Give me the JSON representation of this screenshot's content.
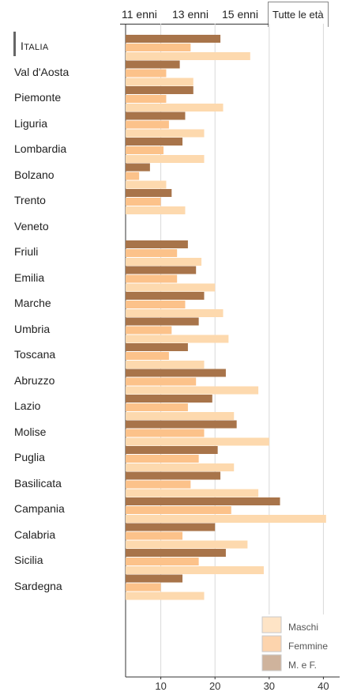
{
  "tabs": [
    {
      "label": "11 enni",
      "active": false
    },
    {
      "label": "13 enni",
      "active": false
    },
    {
      "label": "15 enni",
      "active": false
    },
    {
      "label": "Tutte le età",
      "active": true
    }
  ],
  "selected_region": "Italia",
  "colors": {
    "maschi": "#fdd9ae",
    "femmine": "#fcc28a",
    "mf": "#a8744a",
    "grid": "#d9d9d9",
    "axis": "#333333"
  },
  "chart_data": {
    "type": "bar",
    "orientation": "horizontal",
    "categories": [
      "Italia",
      "Val d'Aosta",
      "Piemonte",
      "Liguria",
      "Lombardia",
      "Bolzano",
      "Trento",
      "Veneto",
      "Friuli",
      "Emilia",
      "Marche",
      "Umbria",
      "Toscana",
      "Abruzzo",
      "Lazio",
      "Molise",
      "Puglia",
      "Basilicata",
      "Campania",
      "Calabria",
      "Sicilia",
      "Sardegna"
    ],
    "series": [
      {
        "name": "M. e F.",
        "key": "mf",
        "values": [
          21,
          13.5,
          16,
          14.5,
          14,
          8,
          12,
          null,
          15,
          16.5,
          18,
          17,
          15,
          22,
          19.5,
          24,
          20.5,
          21,
          32,
          20,
          22,
          14
        ]
      },
      {
        "name": "Femmine",
        "key": "femmine",
        "values": [
          15.5,
          11,
          11,
          11.5,
          10.5,
          6,
          10,
          null,
          13,
          13,
          14.5,
          12,
          11.5,
          16.5,
          15,
          18,
          17,
          15.5,
          23,
          14,
          17,
          10
        ]
      },
      {
        "name": "Maschi",
        "key": "maschi",
        "values": [
          26.5,
          16,
          21.5,
          18,
          18,
          11,
          14.5,
          null,
          17.5,
          20,
          21.5,
          22.5,
          18,
          28,
          23.5,
          30,
          23.5,
          28,
          40.5,
          26,
          29,
          18
        ]
      }
    ],
    "xlim": [
      3.5,
      43
    ],
    "ticks": [
      10,
      20,
      30,
      40
    ],
    "tick_labels": [
      "10",
      "20",
      "30",
      "40"
    ],
    "grid": true,
    "legend": {
      "placement": "bottom-right",
      "entries": [
        "Maschi",
        "Femmine",
        "M. e F."
      ]
    }
  }
}
